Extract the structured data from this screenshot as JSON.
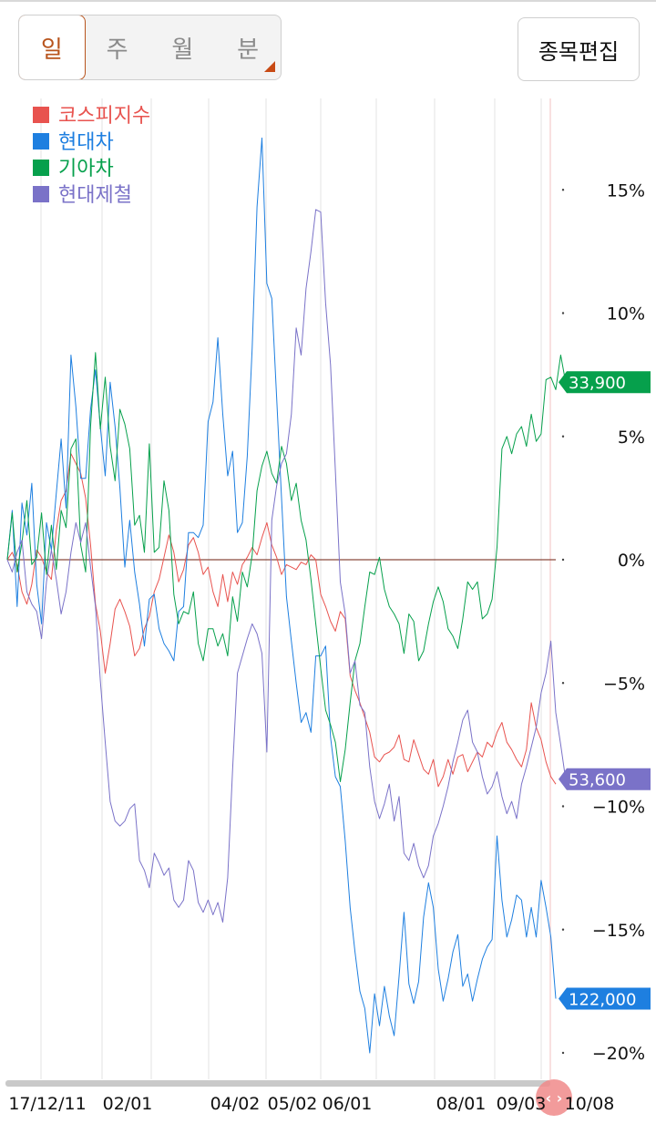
{
  "toolbar": {
    "periods": [
      {
        "label": "일",
        "active": true
      },
      {
        "label": "주",
        "active": false
      },
      {
        "label": "월",
        "active": false
      },
      {
        "label": "분",
        "active": false
      }
    ],
    "edit_label": "종목편집"
  },
  "chart_data": {
    "type": "line",
    "x_labels": [
      "17/12/11",
      "02/01",
      "04/02",
      "05/02",
      "06/01",
      "08/01",
      "09/03",
      "10/08"
    ],
    "y_ticks": [
      15,
      10,
      5,
      0,
      -5,
      -10,
      -15,
      -20
    ],
    "y_tick_labels": [
      "15%",
      "10%",
      "5%",
      "0%",
      "−5%",
      "−10%",
      "−15%",
      "−20%"
    ],
    "ylim": [
      -20,
      17
    ],
    "legend_position": "top-left",
    "series": [
      {
        "name": "코스피지수",
        "color": "#e8534f",
        "values": [
          0,
          0.3,
          -0.2,
          -1.3,
          -1.8,
          -1,
          0.4,
          0.1,
          -0.5,
          -0.8,
          1.2,
          2.4,
          2.8,
          4.3,
          3.9,
          3.5,
          2.5,
          0.6,
          -1.8,
          -2.9,
          -4.6,
          -3.4,
          -2,
          -1.6,
          -2.1,
          -2.7,
          -3.9,
          -3.6,
          -2.8,
          -2.3,
          -1.3,
          -0.8,
          0.1,
          1,
          0.3,
          -0.9,
          -0.4,
          0.6,
          0.9,
          0.3,
          -0.6,
          -0.3,
          -1.3,
          -1.9,
          -0.6,
          -1.7,
          -0.5,
          -1,
          -0.2,
          0.1,
          0.5,
          0.2,
          0.9,
          1.5,
          0.6,
          0.1,
          -0.6,
          -0.2,
          -0.3,
          -0.4,
          -0.1,
          -0.2,
          0.2,
          0,
          -1.4,
          -1.9,
          -2.5,
          -2.9,
          -2.1,
          -2.4,
          -4.7,
          -5.3,
          -5.8,
          -6.4,
          -7,
          -8,
          -8.2,
          -7.9,
          -7.8,
          -7.6,
          -7.1,
          -8.1,
          -8.2,
          -7.3,
          -7.9,
          -8.5,
          -8.7,
          -8.1,
          -9.2,
          -8.8,
          -8.1,
          -8.7,
          -8,
          -7.9,
          -8.6,
          -8.2,
          -7.8,
          -8,
          -7.4,
          -7.6,
          -7,
          -6.6,
          -7.4,
          -7.7,
          -8.1,
          -8.4,
          -7.7,
          -5.8,
          -6.8,
          -7.3,
          -8.2,
          -8.8,
          -9.1
        ],
        "end_label": ""
      },
      {
        "name": "현대차",
        "color": "#1e7fe0",
        "values": [
          0,
          2,
          -1.9,
          2.3,
          1,
          3.1,
          -1,
          -2.6,
          1.5,
          0.4,
          2.7,
          4.9,
          2.1,
          8.3,
          6.2,
          3.3,
          3.3,
          6.1,
          7.7,
          5.4,
          3.4,
          7.2,
          5.4,
          2.9,
          -0.3,
          1.6,
          -0.5,
          -1.8,
          -3.5,
          -1.6,
          -1.4,
          -2.8,
          -3.4,
          -3.7,
          -4.1,
          -2.1,
          -1.9,
          1.1,
          1.1,
          0.9,
          1.4,
          5.6,
          6.4,
          9,
          5.9,
          3.4,
          4.4,
          1.1,
          1.5,
          4.2,
          8.6,
          14.3,
          17.1,
          11.2,
          10.6,
          6.6,
          2.5,
          -1.5,
          -3.3,
          -5,
          -6.6,
          -6.2,
          -7,
          -3.9,
          -3.9,
          -3.5,
          -7.2,
          -8.8,
          -9.2,
          -11.4,
          -14.1,
          -15.9,
          -17.5,
          -18.2,
          -20,
          -17.6,
          -18.9,
          -17.3,
          -18.5,
          -19.3,
          -16.9,
          -14.3,
          -17.2,
          -18,
          -17.1,
          -14.5,
          -13.1,
          -14.1,
          -16.6,
          -17.9,
          -17,
          -15.9,
          -15.2,
          -17.3,
          -16.8,
          -17.9,
          -17,
          -16.2,
          -15.7,
          -15.4,
          -11.2,
          -13.8,
          -15.3,
          -14.6,
          -13.6,
          -13.8,
          -15.3,
          -14.1,
          -15.3,
          -13,
          -14.1,
          -15.3,
          -17.8
        ],
        "end_label": "122,000"
      },
      {
        "name": "기아차",
        "color": "#06a04c",
        "values": [
          0,
          1.9,
          -0.5,
          0.7,
          2.4,
          -0.2,
          0.1,
          1.9,
          -0.6,
          1.4,
          -0.4,
          2,
          1.3,
          4.5,
          4.9,
          0.6,
          -0.5,
          5.4,
          8.4,
          5.3,
          7.4,
          4.6,
          3.2,
          6.1,
          5.5,
          4.5,
          1.4,
          1.8,
          0.3,
          4.7,
          0.3,
          0.5,
          3.2,
          2,
          -1.4,
          -2.6,
          -2.1,
          -2.2,
          -1.3,
          -3.4,
          -4.1,
          -2.8,
          -2.8,
          -3.5,
          -3,
          -3.9,
          -1.5,
          -2.5,
          -0.5,
          -1.1,
          0.2,
          2.8,
          3.8,
          4.4,
          3.5,
          3.1,
          4.6,
          3.9,
          2.4,
          3.1,
          1.6,
          0.8,
          -0.8,
          -2.6,
          -4.4,
          -6.1,
          -6.7,
          -7.4,
          -9,
          -7.7,
          -5.8,
          -4.1,
          -3.4,
          -1.9,
          -0.5,
          -0.6,
          0.1,
          -1.2,
          -1.9,
          -2.2,
          -2.6,
          -3.8,
          -2.2,
          -2.5,
          -4.1,
          -3.7,
          -2.6,
          -1.7,
          -1.1,
          -1.7,
          -2.8,
          -3.1,
          -3.6,
          -2.4,
          -0.9,
          -1.2,
          -0.9,
          -2.4,
          -2.2,
          -1.6,
          0.5,
          4.5,
          5,
          4.3,
          5.1,
          5.4,
          4.6,
          5.9,
          4.8,
          5.1,
          7.3,
          7.4,
          6.9,
          8.3,
          7.2
        ],
        "end_label": "33,900"
      },
      {
        "name": "현대제철",
        "color": "#7a72c8",
        "values": [
          0,
          -0.5,
          0.3,
          0.8,
          -1.3,
          -1.8,
          -2.1,
          -3.2,
          -0.9,
          0.4,
          -0.8,
          -2.2,
          -1.3,
          0.3,
          1.5,
          0.7,
          1.5,
          -0.3,
          -1.9,
          -4.9,
          -7.4,
          -9.8,
          -10.6,
          -10.8,
          -10.6,
          -10.1,
          -9.9,
          -12.2,
          -12.6,
          -13.3,
          -11.9,
          -12.3,
          -12.8,
          -12.5,
          -13.8,
          -14.1,
          -13.8,
          -12.2,
          -12.6,
          -13.9,
          -14.3,
          -13.8,
          -14.4,
          -13.9,
          -14.7,
          -12.9,
          -8.5,
          -4.6,
          -3.9,
          -3.2,
          -2.6,
          -3,
          -3.8,
          -7.8,
          1.6,
          3,
          3.9,
          4.3,
          5.9,
          9.4,
          8.3,
          11,
          12.5,
          14.2,
          14.1,
          10.4,
          7.9,
          3.6,
          -0.9,
          -2.2,
          -4.6,
          -4.1,
          -5.9,
          -6.2,
          -8.4,
          -9.8,
          -10.5,
          -9.9,
          -9.1,
          -10.6,
          -9.6,
          -11.9,
          -12.2,
          -11.5,
          -12.4,
          -12.9,
          -12.4,
          -11.2,
          -10.7,
          -10,
          -9.2,
          -8.2,
          -7.4,
          -6.5,
          -6.1,
          -7.4,
          -7.8,
          -8.8,
          -9.5,
          -9.2,
          -8.6,
          -9.6,
          -10.3,
          -9.8,
          -10.5,
          -9.1,
          -8.4,
          -7.6,
          -6.8,
          -5.4,
          -4.6,
          -3.3,
          -6.2,
          -7.5,
          -8.9
        ],
        "end_label": "53,600"
      }
    ]
  }
}
